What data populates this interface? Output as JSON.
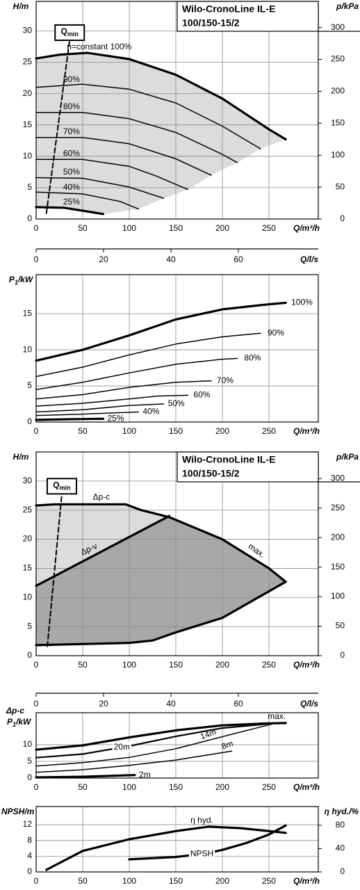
{
  "chart_data": [
    {
      "type": "line",
      "title_lines": [
        "Wilo-CronoLine IL-E",
        "100/150-15/2"
      ],
      "ylabel": "H/m",
      "y2label": "p/kPa",
      "xlabel": "Q/m³/h",
      "xlim": [
        0,
        303
      ],
      "xticks": [
        0,
        50,
        100,
        150,
        200,
        250
      ],
      "ylim": [
        0,
        34.7
      ],
      "yticks": [
        0,
        5,
        10,
        15,
        20,
        25,
        30
      ],
      "y2lim": [
        0,
        341
      ],
      "y2ticks": [
        0,
        50,
        100,
        150,
        200,
        250,
        300
      ],
      "grid": true,
      "fill_colors": [
        "#dcdcdc"
      ],
      "series": [
        {
          "name": "n=constant 100%",
          "color": "#000",
          "width": 3.2,
          "x": [
            0,
            25,
            55,
            100,
            150,
            200,
            250,
            268
          ],
          "values": [
            25.6,
            26.2,
            26.5,
            25.5,
            23,
            19.2,
            14.3,
            12.7
          ]
        },
        {
          "name": "90%",
          "color": "#000",
          "width": 1.5,
          "x": [
            0,
            50,
            100,
            150,
            200,
            241
          ],
          "values": [
            21,
            21.5,
            20.7,
            18.5,
            14.8,
            11.2
          ]
        },
        {
          "name": "80%",
          "color": "#000",
          "width": 1.5,
          "x": [
            0,
            50,
            100,
            150,
            200,
            216
          ],
          "values": [
            17,
            17,
            16,
            13.8,
            10.3,
            9
          ]
        },
        {
          "name": "70%",
          "color": "#000",
          "width": 1.5,
          "x": [
            0,
            50,
            100,
            150,
            188
          ],
          "values": [
            13,
            13,
            12,
            9.6,
            7
          ]
        },
        {
          "name": "60%",
          "color": "#000",
          "width": 1.5,
          "x": [
            0,
            50,
            100,
            130,
            163
          ],
          "values": [
            9.5,
            9.5,
            8.4,
            6.8,
            4.7
          ]
        },
        {
          "name": "50%",
          "color": "#000",
          "width": 1.5,
          "x": [
            0,
            50,
            100,
            137
          ],
          "values": [
            6.6,
            6.5,
            5.1,
            3.3
          ]
        },
        {
          "name": "40%",
          "color": "#000",
          "width": 1.5,
          "x": [
            0,
            50,
            90,
            110
          ],
          "values": [
            4.3,
            4,
            2.8,
            1.6
          ]
        },
        {
          "name": "25%",
          "color": "#000",
          "width": 3.2,
          "x": [
            0,
            30,
            72
          ],
          "values": [
            1.9,
            1.8,
            0.8
          ]
        },
        {
          "name": "Q",
          "name_sub": "min",
          "color": "#000",
          "width": 2,
          "dash": true,
          "x": [
            11,
            36
          ],
          "values": [
            0.9,
            28.5
          ]
        }
      ]
    },
    {
      "type": "axis",
      "xlabel": "Q/l/s",
      "xlim": [
        0,
        83.7
      ],
      "xticks": [
        0,
        20,
        40,
        60
      ]
    },
    {
      "type": "line",
      "ylabel": "P",
      "ylabel_sub": "1",
      "ylabel_unit": "/kW",
      "xlabel": "Q/m³/h",
      "xlim": [
        0,
        303
      ],
      "xticks": [
        0,
        50,
        100,
        150,
        200,
        250
      ],
      "ylim": [
        0,
        20.4
      ],
      "yticks": [
        0,
        5,
        10,
        15
      ],
      "grid": true,
      "series": [
        {
          "name": "100%",
          "color": "#000",
          "width": 3.2,
          "x": [
            0,
            50,
            100,
            150,
            200,
            250,
            268
          ],
          "values": [
            8.5,
            10,
            12,
            14.2,
            15.6,
            16.3,
            16.5
          ]
        },
        {
          "name": "90%",
          "color": "#000",
          "width": 1.5,
          "x": [
            0,
            50,
            100,
            150,
            200,
            241
          ],
          "values": [
            6.3,
            7.6,
            9.3,
            10.8,
            11.8,
            12.3
          ]
        },
        {
          "name": "80%",
          "color": "#000",
          "width": 1.5,
          "x": [
            0,
            50,
            100,
            150,
            200,
            216
          ],
          "values": [
            4.5,
            5.5,
            6.8,
            8,
            8.7,
            8.8
          ]
        },
        {
          "name": "70%",
          "color": "#000",
          "width": 1.5,
          "x": [
            0,
            50,
            100,
            150,
            188
          ],
          "values": [
            3.2,
            3.8,
            4.8,
            5.5,
            5.7
          ]
        },
        {
          "name": "60%",
          "color": "#000",
          "width": 1.5,
          "x": [
            0,
            50,
            100,
            130,
            163
          ],
          "values": [
            2.2,
            2.6,
            3.2,
            3.6,
            3.7
          ]
        },
        {
          "name": "50%",
          "color": "#000",
          "width": 1.5,
          "x": [
            0,
            50,
            100,
            137
          ],
          "values": [
            1.4,
            1.7,
            2.3,
            2.5
          ]
        },
        {
          "name": "40%",
          "color": "#000",
          "width": 1.5,
          "x": [
            0,
            50,
            90,
            110
          ],
          "values": [
            0.9,
            1.1,
            1.3,
            1.4
          ]
        },
        {
          "name": "25%",
          "color": "#000",
          "width": 3.2,
          "x": [
            0,
            40,
            72
          ],
          "values": [
            0.3,
            0.4,
            0.45
          ]
        }
      ]
    },
    {
      "type": "line",
      "title_lines": [
        "Wilo-CronoLine IL-E",
        "100/150-15/2"
      ],
      "ylabel": "H/m",
      "y2label": "p/kPa",
      "xlabel": "Q/m³/h",
      "xlim": [
        0,
        303
      ],
      "xticks": [
        0,
        50,
        100,
        150,
        200,
        250
      ],
      "ylim": [
        0,
        35
      ],
      "yticks": [
        0,
        5,
        10,
        15,
        20,
        25,
        30
      ],
      "y2lim": [
        0,
        345
      ],
      "y2ticks": [
        0,
        50,
        100,
        150,
        200,
        250,
        300
      ],
      "grid": true,
      "fill_colors": [
        "#dcdcdc",
        "#a8a8a8"
      ],
      "series": [
        {
          "name": "Δp-c",
          "color": "#000",
          "width": 3.2,
          "x": [
            0,
            20,
            96,
            113,
            143
          ],
          "values": [
            25.8,
            26,
            26,
            25,
            23.8
          ]
        },
        {
          "name": "Δp-v",
          "color": "#000",
          "width": 3.2,
          "x": [
            0,
            143
          ],
          "values": [
            12,
            24
          ]
        },
        {
          "name": "max.",
          "color": "#000",
          "width": 3.2,
          "x": [
            143,
            200,
            250,
            268
          ],
          "values": [
            23.8,
            20,
            15,
            12.7
          ]
        },
        {
          "color": "#000",
          "width": 3.2,
          "x": [
            0,
            100,
            125,
            150,
            200,
            268
          ],
          "values": [
            1.8,
            2.2,
            2.6,
            4,
            6.5,
            12.7
          ]
        },
        {
          "name": "Q",
          "name_sub": "min",
          "color": "#000",
          "width": 2,
          "dash": true,
          "x": [
            12,
            27.6
          ],
          "values": [
            1.6,
            27.8
          ]
        }
      ]
    },
    {
      "type": "axis",
      "xlabel": "Q/l/s",
      "xlim": [
        0,
        83.7
      ],
      "xticks": [
        0,
        20,
        40,
        60
      ]
    },
    {
      "type": "line",
      "ylabel_top": "Δp-c",
      "ylabel": "P",
      "ylabel_sub": "1",
      "ylabel_unit": "/kW",
      "xlabel": "Q/m³/h",
      "xlim": [
        0,
        303
      ],
      "xticks": [
        0,
        50,
        100,
        150,
        200,
        250
      ],
      "ylim": [
        0,
        19.6
      ],
      "yticks": [
        0,
        5,
        10
      ],
      "grid": true,
      "series": [
        {
          "name": "max.",
          "color": "#000",
          "width": 3.2,
          "x": [
            0,
            50,
            100,
            150,
            200,
            250,
            268
          ],
          "values": [
            8.5,
            9.8,
            12.2,
            14.3,
            15.8,
            16.4,
            16.5
          ]
        },
        {
          "name": "20m",
          "color": "#000",
          "width": 2.2,
          "x": [
            0,
            50,
            100,
            150,
            200,
            258
          ],
          "values": [
            6.1,
            7.2,
            9.6,
            12.5,
            15,
            16.5
          ]
        },
        {
          "name": "14m",
          "color": "#000",
          "width": 1.5,
          "x": [
            0,
            50,
            100,
            150,
            200,
            255
          ],
          "values": [
            3.6,
            4.6,
            6.2,
            8.8,
            12.4,
            16.3
          ]
        },
        {
          "name": "8m",
          "color": "#000",
          "width": 1.5,
          "x": [
            0,
            50,
            100,
            150,
            210
          ],
          "values": [
            1.7,
            2.5,
            3.8,
            5.4,
            8.1
          ]
        },
        {
          "name": "2m",
          "color": "#000",
          "width": 3.2,
          "x": [
            0,
            50,
            106
          ],
          "values": [
            0.2,
            0.4,
            0.9
          ]
        }
      ]
    },
    {
      "type": "line",
      "ylabel": "NPSH/m",
      "y2label": "η hyd./%",
      "xlabel": "Q/m³/h",
      "xlim": [
        0,
        303
      ],
      "xticks": [
        0,
        50,
        100,
        150,
        200,
        250
      ],
      "ylim": [
        0,
        16.6
      ],
      "yticks": [
        0,
        4,
        8,
        12
      ],
      "y2lim": [
        0,
        112
      ],
      "y2ticks": [
        0,
        40,
        80
      ],
      "grid": true,
      "series": [
        {
          "name": "η hyd.",
          "axis": "y2",
          "color": "#000",
          "width": 3.2,
          "x": [
            11,
            50,
            100,
            150,
            185,
            220,
            268
          ],
          "values": [
            3.6,
            36,
            56,
            70,
            77.6,
            75,
            67
          ]
        },
        {
          "name": "NPSH",
          "color": "#000",
          "width": 3.2,
          "x": [
            100,
            150,
            180,
            200,
            225,
            250,
            268
          ],
          "values": [
            3.2,
            3.8,
            4.6,
            5.6,
            7.3,
            9.5,
            11.8
          ]
        }
      ]
    }
  ]
}
